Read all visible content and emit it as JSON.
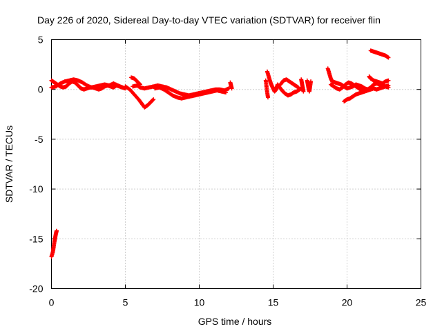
{
  "chart_data": {
    "type": "scatter",
    "title": "Day 226 of 2020, Sidereal Day-to-day VTEC variation (SDTVAR) for receiver flin",
    "xlabel": "GPS time / hours",
    "ylabel": "SDTVAR / TECUs",
    "xlim": [
      0,
      25
    ],
    "ylim": [
      -20,
      5
    ],
    "xticks": [
      0,
      5,
      10,
      15,
      20,
      25
    ],
    "yticks": [
      -20,
      -15,
      -10,
      -5,
      0,
      5
    ],
    "xtick_labels": [
      "0",
      "5",
      "10",
      "15",
      "20",
      "25"
    ],
    "ytick_labels": [
      "-20",
      "-15",
      "-10",
      "-5",
      "0",
      "5"
    ],
    "grid": true,
    "marker": "+",
    "color": "#ff0000",
    "series": [
      {
        "name": "SDTVAR",
        "segments": [
          [
            [
              0.0,
              -16.8
            ],
            [
              0.1,
              -16.3
            ],
            [
              0.15,
              -15.8
            ],
            [
              0.2,
              -15.3
            ],
            [
              0.25,
              -14.9
            ],
            [
              0.3,
              -14.5
            ],
            [
              0.35,
              -14.2
            ]
          ],
          [
            [
              0.0,
              0.9
            ],
            [
              0.2,
              0.7
            ],
            [
              0.4,
              0.5
            ],
            [
              0.6,
              0.3
            ],
            [
              0.8,
              0.2
            ],
            [
              1.0,
              0.3
            ],
            [
              1.2,
              0.6
            ],
            [
              1.4,
              0.8
            ],
            [
              1.6,
              0.7
            ],
            [
              1.8,
              0.4
            ],
            [
              2.0,
              0.1
            ],
            [
              2.2,
              0.0
            ],
            [
              2.4,
              0.1
            ],
            [
              2.6,
              0.2
            ],
            [
              2.8,
              0.2
            ],
            [
              3.0,
              0.1
            ],
            [
              3.2,
              0.0
            ],
            [
              3.4,
              0.1
            ],
            [
              3.6,
              0.3
            ],
            [
              3.8,
              0.4
            ],
            [
              4.0,
              0.3
            ],
            [
              4.2,
              0.2
            ],
            [
              4.4,
              0.4
            ],
            [
              4.6,
              0.3
            ],
            [
              4.8,
              0.2
            ],
            [
              5.0,
              0.1
            ]
          ],
          [
            [
              0.0,
              0.2
            ],
            [
              0.3,
              0.3
            ],
            [
              0.6,
              0.6
            ],
            [
              0.9,
              0.8
            ],
            [
              1.2,
              0.9
            ],
            [
              1.5,
              1.0
            ],
            [
              1.8,
              0.9
            ],
            [
              2.1,
              0.7
            ],
            [
              2.4,
              0.4
            ],
            [
              2.7,
              0.2
            ],
            [
              3.0,
              0.3
            ],
            [
              3.3,
              0.4
            ],
            [
              3.6,
              0.5
            ],
            [
              3.9,
              0.4
            ],
            [
              4.2,
              0.6
            ],
            [
              4.5,
              0.4
            ],
            [
              4.8,
              0.2
            ]
          ],
          [
            [
              5.4,
              1.2
            ],
            [
              5.6,
              1.1
            ],
            [
              5.8,
              0.8
            ],
            [
              6.0,
              0.5
            ]
          ],
          [
            [
              5.0,
              0.3
            ],
            [
              5.3,
              0.0
            ],
            [
              5.6,
              -0.5
            ],
            [
              5.9,
              -1.0
            ],
            [
              6.1,
              -1.4
            ],
            [
              6.3,
              -1.8
            ],
            [
              6.5,
              -1.6
            ],
            [
              6.7,
              -1.3
            ],
            [
              6.9,
              -1.0
            ]
          ],
          [
            [
              5.5,
              0.3
            ],
            [
              5.8,
              0.4
            ],
            [
              6.0,
              0.2
            ],
            [
              6.3,
              0.1
            ],
            [
              6.6,
              0.2
            ],
            [
              6.9,
              0.3
            ],
            [
              7.2,
              0.4
            ],
            [
              7.5,
              0.3
            ],
            [
              7.8,
              0.2
            ],
            [
              8.1,
              0.0
            ],
            [
              8.4,
              -0.2
            ],
            [
              8.7,
              -0.4
            ],
            [
              9.0,
              -0.5
            ],
            [
              9.3,
              -0.6
            ],
            [
              9.6,
              -0.5
            ],
            [
              9.9,
              -0.4
            ],
            [
              10.2,
              -0.3
            ],
            [
              10.5,
              -0.2
            ],
            [
              10.8,
              -0.1
            ],
            [
              11.1,
              0.0
            ],
            [
              11.4,
              0.0
            ],
            [
              11.7,
              -0.1
            ],
            [
              12.0,
              0.1
            ]
          ],
          [
            [
              7.0,
              0.1
            ],
            [
              7.3,
              0.2
            ],
            [
              7.6,
              0.0
            ],
            [
              7.9,
              -0.3
            ],
            [
              8.2,
              -0.6
            ],
            [
              8.5,
              -0.8
            ],
            [
              8.8,
              -0.9
            ],
            [
              9.1,
              -0.8
            ],
            [
              9.4,
              -0.7
            ],
            [
              9.7,
              -0.6
            ],
            [
              10.0,
              -0.5
            ],
            [
              10.3,
              -0.4
            ],
            [
              10.6,
              -0.3
            ],
            [
              10.9,
              -0.2
            ],
            [
              11.2,
              -0.1
            ],
            [
              11.5,
              -0.2
            ],
            [
              11.8,
              -0.3
            ]
          ],
          [
            [
              12.1,
              0.7
            ],
            [
              12.15,
              0.4
            ],
            [
              12.2,
              0.1
            ]
          ],
          [
            [
              14.6,
              1.8
            ],
            [
              14.7,
              1.3
            ],
            [
              14.8,
              0.8
            ],
            [
              14.9,
              0.4
            ],
            [
              15.0,
              0.1
            ],
            [
              15.1,
              -0.2
            ],
            [
              15.2,
              0.0
            ],
            [
              15.3,
              0.5
            ],
            [
              15.4,
              0.3
            ],
            [
              15.6,
              -0.1
            ],
            [
              15.8,
              -0.4
            ],
            [
              16.0,
              -0.6
            ],
            [
              16.2,
              -0.5
            ],
            [
              16.4,
              -0.3
            ],
            [
              16.6,
              -0.2
            ],
            [
              16.8,
              0.0
            ],
            [
              17.0,
              0.2
            ]
          ],
          [
            [
              14.5,
              0.9
            ],
            [
              14.55,
              0.3
            ],
            [
              14.6,
              -0.3
            ],
            [
              14.65,
              -0.8
            ]
          ],
          [
            [
              15.5,
              0.5
            ],
            [
              15.7,
              0.9
            ],
            [
              15.9,
              1.0
            ],
            [
              16.1,
              0.8
            ],
            [
              16.3,
              0.6
            ],
            [
              16.5,
              0.4
            ],
            [
              16.7,
              0.2
            ]
          ],
          [
            [
              16.9,
              1.0
            ],
            [
              16.95,
              0.6
            ],
            [
              17.0,
              0.2
            ],
            [
              17.05,
              -0.2
            ]
          ],
          [
            [
              17.3,
              0.9
            ],
            [
              17.35,
              0.5
            ],
            [
              17.4,
              0.1
            ],
            [
              17.45,
              -0.2
            ],
            [
              17.5,
              0.3
            ],
            [
              17.55,
              0.8
            ]
          ],
          [
            [
              18.7,
              2.1
            ],
            [
              18.8,
              1.6
            ],
            [
              18.9,
              1.1
            ],
            [
              19.0,
              0.8
            ],
            [
              19.2,
              0.7
            ],
            [
              19.4,
              0.6
            ],
            [
              19.6,
              0.5
            ],
            [
              19.8,
              0.3
            ],
            [
              20.0,
              0.1
            ],
            [
              20.2,
              0.2
            ],
            [
              20.4,
              0.3
            ],
            [
              20.6,
              0.5
            ],
            [
              20.8,
              0.4
            ],
            [
              21.0,
              0.3
            ],
            [
              21.2,
              0.1
            ],
            [
              21.4,
              0.0
            ],
            [
              21.6,
              0.2
            ],
            [
              21.8,
              0.5
            ],
            [
              22.0,
              0.6
            ],
            [
              22.2,
              0.5
            ],
            [
              22.4,
              0.4
            ],
            [
              22.6,
              0.3
            ],
            [
              22.8,
              0.2
            ]
          ],
          [
            [
              18.9,
              0.5
            ],
            [
              19.1,
              0.3
            ],
            [
              19.3,
              0.1
            ],
            [
              19.5,
              0.0
            ],
            [
              19.7,
              0.2
            ],
            [
              19.9,
              0.5
            ],
            [
              20.1,
              0.7
            ],
            [
              20.3,
              0.6
            ],
            [
              20.5,
              0.4
            ],
            [
              20.7,
              0.2
            ],
            [
              20.9,
              0.0
            ],
            [
              21.1,
              -0.1
            ]
          ],
          [
            [
              19.8,
              -1.2
            ],
            [
              20.0,
              -1.0
            ],
            [
              20.2,
              -0.9
            ],
            [
              20.4,
              -0.7
            ],
            [
              20.6,
              -0.5
            ],
            [
              20.8,
              -0.4
            ],
            [
              21.0,
              -0.3
            ],
            [
              21.2,
              -0.2
            ],
            [
              21.4,
              -0.1
            ],
            [
              21.6,
              0.0
            ],
            [
              21.8,
              0.1
            ],
            [
              22.0,
              0.0
            ],
            [
              22.2,
              0.1
            ],
            [
              22.4,
              0.2
            ],
            [
              22.6,
              0.3
            ],
            [
              22.8,
              0.4
            ]
          ],
          [
            [
              21.5,
              1.3
            ],
            [
              21.6,
              1.1
            ],
            [
              21.8,
              0.9
            ],
            [
              22.0,
              0.8
            ],
            [
              22.2,
              0.7
            ],
            [
              22.4,
              0.6
            ],
            [
              22.6,
              0.8
            ],
            [
              22.8,
              0.9
            ]
          ],
          [
            [
              21.6,
              3.9
            ],
            [
              21.8,
              3.8
            ],
            [
              22.0,
              3.7
            ],
            [
              22.2,
              3.6
            ],
            [
              22.4,
              3.5
            ],
            [
              22.6,
              3.4
            ],
            [
              22.8,
              3.2
            ]
          ]
        ]
      }
    ]
  }
}
